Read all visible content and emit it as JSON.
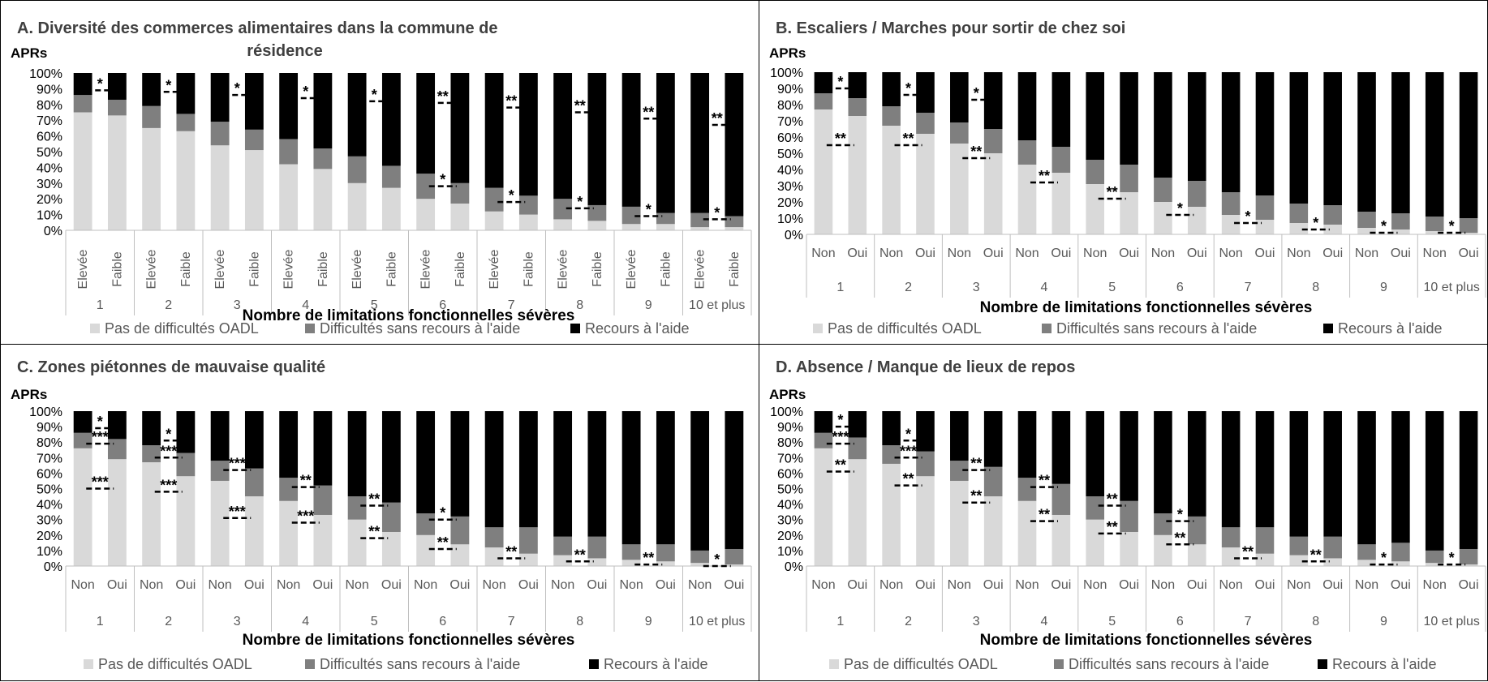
{
  "colors": {
    "pas_de_difficultes": "#d9d9d9",
    "difficultes_sans_aide": "#7f7f7f",
    "recours_aide": "#000000",
    "axis_text": "#595959",
    "grid_line": "#bfbfbf"
  },
  "chart_data": [
    {
      "type": "bar",
      "stacked": true,
      "title_line1": "A. Diversité des commerces alimentaires dans la commune de",
      "title_line2": "résidence",
      "ylabel": "APRs",
      "ylim": [
        0,
        100
      ],
      "yticks": [
        "100%",
        "90%",
        "80%",
        "70%",
        "60%",
        "50%",
        "40%",
        "30%",
        "20%",
        "10%",
        "0%"
      ],
      "xlabel": "Nombre de limitations fonctionnelles sévères",
      "x_category_orientation": "vertical",
      "groups": [
        "1",
        "2",
        "3",
        "4",
        "5",
        "6",
        "7",
        "8",
        "9",
        "10 et plus"
      ],
      "categories": [
        "Elevée",
        "Faible"
      ],
      "legend": [
        "Pas de difficultés OADL",
        "Difficultés sans recours à l'aide",
        "Recours à l'aide"
      ],
      "series": [
        {
          "name": "Pas de difficultés OADL",
          "values": [
            [
              75,
              73
            ],
            [
              65,
              63
            ],
            [
              54,
              51
            ],
            [
              42,
              39
            ],
            [
              30,
              27
            ],
            [
              20,
              17
            ],
            [
              12,
              10
            ],
            [
              7,
              6
            ],
            [
              4,
              4
            ],
            [
              2,
              2
            ]
          ]
        },
        {
          "name": "Difficultés sans recours à l'aide",
          "values": [
            [
              11,
              10
            ],
            [
              14,
              11
            ],
            [
              15,
              13
            ],
            [
              16,
              13
            ],
            [
              17,
              14
            ],
            [
              16,
              13
            ],
            [
              15,
              12
            ],
            [
              13,
              10
            ],
            [
              11,
              7
            ],
            [
              9,
              7
            ]
          ]
        },
        {
          "name": "Recours à l'aide",
          "values": [
            [
              14,
              17
            ],
            [
              21,
              26
            ],
            [
              31,
              36
            ],
            [
              42,
              48
            ],
            [
              53,
              59
            ],
            [
              64,
              70
            ],
            [
              73,
              78
            ],
            [
              80,
              84
            ],
            [
              85,
              89
            ],
            [
              89,
              91
            ]
          ]
        }
      ],
      "annotations": [
        {
          "group": "1",
          "value": 89,
          "text": "*"
        },
        {
          "group": "2",
          "value": 88,
          "text": "*"
        },
        {
          "group": "3",
          "value": 86,
          "text": "*"
        },
        {
          "group": "4",
          "value": 84,
          "text": "*"
        },
        {
          "group": "5",
          "value": 82,
          "text": "*"
        },
        {
          "group": "6",
          "value": 81,
          "text": "**"
        },
        {
          "group": "6",
          "value": 28,
          "text": "*"
        },
        {
          "group": "7",
          "value": 78,
          "text": "**"
        },
        {
          "group": "7",
          "value": 18,
          "text": "*"
        },
        {
          "group": "8",
          "value": 75,
          "text": "**"
        },
        {
          "group": "8",
          "value": 14,
          "text": "*"
        },
        {
          "group": "9",
          "value": 71,
          "text": "**"
        },
        {
          "group": "9",
          "value": 9,
          "text": "*"
        },
        {
          "group": "10 et plus",
          "value": 67,
          "text": "**"
        },
        {
          "group": "10 et plus",
          "value": 7,
          "text": "*"
        }
      ]
    },
    {
      "type": "bar",
      "stacked": true,
      "title_line1": "B. Escaliers / Marches pour sortir de chez soi",
      "title_line2": "",
      "ylabel": "APRs",
      "ylim": [
        0,
        100
      ],
      "yticks": [
        "100%",
        "90%",
        "80%",
        "70%",
        "60%",
        "50%",
        "40%",
        "30%",
        "20%",
        "10%",
        "0%"
      ],
      "xlabel": "Nombre de limitations fonctionnelles sévères",
      "x_category_orientation": "horizontal",
      "groups": [
        "1",
        "2",
        "3",
        "4",
        "5",
        "6",
        "7",
        "8",
        "9",
        "10 et plus"
      ],
      "categories": [
        "Non",
        "Oui"
      ],
      "legend": [
        "Pas de difficultés OADL",
        "Difficultés sans recours à l'aide",
        "Recours à l'aide"
      ],
      "series": [
        {
          "name": "Pas de difficultés OADL",
          "values": [
            [
              77,
              73
            ],
            [
              67,
              62
            ],
            [
              56,
              50
            ],
            [
              43,
              38
            ],
            [
              31,
              26
            ],
            [
              20,
              17
            ],
            [
              12,
              9
            ],
            [
              7,
              6
            ],
            [
              4,
              3
            ],
            [
              2,
              1
            ]
          ]
        },
        {
          "name": "Difficultés sans recours à l'aide",
          "values": [
            [
              10,
              11
            ],
            [
              12,
              13
            ],
            [
              13,
              15
            ],
            [
              15,
              16
            ],
            [
              15,
              17
            ],
            [
              15,
              16
            ],
            [
              14,
              15
            ],
            [
              12,
              12
            ],
            [
              10,
              10
            ],
            [
              9,
              9
            ]
          ]
        },
        {
          "name": "Recours à l'aide",
          "values": [
            [
              13,
              16
            ],
            [
              21,
              25
            ],
            [
              31,
              35
            ],
            [
              42,
              46
            ],
            [
              54,
              57
            ],
            [
              65,
              67
            ],
            [
              74,
              76
            ],
            [
              81,
              82
            ],
            [
              86,
              87
            ],
            [
              89,
              90
            ]
          ]
        }
      ],
      "annotations": [
        {
          "group": "1",
          "value": 90,
          "text": "*"
        },
        {
          "group": "1",
          "value": 55,
          "text": "**"
        },
        {
          "group": "2",
          "value": 86,
          "text": "*"
        },
        {
          "group": "2",
          "value": 55,
          "text": "**"
        },
        {
          "group": "3",
          "value": 83,
          "text": "*"
        },
        {
          "group": "3",
          "value": 47,
          "text": "**"
        },
        {
          "group": "4",
          "value": 32,
          "text": "**"
        },
        {
          "group": "5",
          "value": 22,
          "text": "**"
        },
        {
          "group": "6",
          "value": 12,
          "text": "*"
        },
        {
          "group": "7",
          "value": 7,
          "text": "*"
        },
        {
          "group": "8",
          "value": 3,
          "text": "*"
        },
        {
          "group": "9",
          "value": 1,
          "text": "*"
        },
        {
          "group": "10 et plus",
          "value": 1,
          "text": "*"
        }
      ]
    },
    {
      "type": "bar",
      "stacked": true,
      "title_line1": "C. Zones piétonnes de mauvaise qualité",
      "title_line2": "",
      "ylabel": "APRs",
      "ylim": [
        0,
        100
      ],
      "yticks": [
        "100%",
        "90%",
        "80%",
        "70%",
        "60%",
        "50%",
        "40%",
        "30%",
        "20%",
        "10%",
        "0%"
      ],
      "xlabel": "Nombre de limitations fonctionnelles sévères",
      "x_category_orientation": "horizontal",
      "groups": [
        "1",
        "2",
        "3",
        "4",
        "5",
        "6",
        "7",
        "8",
        "9",
        "10 et plus"
      ],
      "categories": [
        "Non",
        "Oui"
      ],
      "legend": [
        "Pas de difficultés OADL",
        "Difficultés sans recours à l'aide",
        "Recours à l'aide"
      ],
      "series": [
        {
          "name": "Pas de difficultés OADL",
          "values": [
            [
              76,
              69
            ],
            [
              67,
              58
            ],
            [
              55,
              45
            ],
            [
              42,
              33
            ],
            [
              30,
              22
            ],
            [
              20,
              14
            ],
            [
              12,
              8
            ],
            [
              7,
              5
            ],
            [
              4,
              3
            ],
            [
              2,
              1
            ]
          ]
        },
        {
          "name": "Difficultés sans recours à l'aide",
          "values": [
            [
              10,
              13
            ],
            [
              11,
              15
            ],
            [
              13,
              18
            ],
            [
              15,
              19
            ],
            [
              15,
              19
            ],
            [
              14,
              18
            ],
            [
              13,
              17
            ],
            [
              12,
              14
            ],
            [
              10,
              11
            ],
            [
              8,
              10
            ]
          ]
        },
        {
          "name": "Recours à l'aide",
          "values": [
            [
              14,
              18
            ],
            [
              22,
              27
            ],
            [
              32,
              37
            ],
            [
              43,
              48
            ],
            [
              55,
              59
            ],
            [
              66,
              68
            ],
            [
              75,
              75
            ],
            [
              81,
              81
            ],
            [
              86,
              86
            ],
            [
              90,
              89
            ]
          ]
        }
      ],
      "annotations": [
        {
          "group": "1",
          "value": 89,
          "text": "*"
        },
        {
          "group": "1",
          "value": 79,
          "text": "***"
        },
        {
          "group": "1",
          "value": 50,
          "text": "***"
        },
        {
          "group": "2",
          "value": 81,
          "text": "*"
        },
        {
          "group": "2",
          "value": 70,
          "text": "***"
        },
        {
          "group": "2",
          "value": 48,
          "text": "***"
        },
        {
          "group": "3",
          "value": 62,
          "text": "***"
        },
        {
          "group": "3",
          "value": 31,
          "text": "***"
        },
        {
          "group": "4",
          "value": 51,
          "text": "**"
        },
        {
          "group": "4",
          "value": 28,
          "text": "***"
        },
        {
          "group": "5",
          "value": 39,
          "text": "**"
        },
        {
          "group": "5",
          "value": 18,
          "text": "**"
        },
        {
          "group": "6",
          "value": 30,
          "text": "*"
        },
        {
          "group": "6",
          "value": 11,
          "text": "**"
        },
        {
          "group": "7",
          "value": 5,
          "text": "**"
        },
        {
          "group": "8",
          "value": 3,
          "text": "**"
        },
        {
          "group": "9",
          "value": 1,
          "text": "**"
        },
        {
          "group": "10 et plus",
          "value": 0,
          "text": "*"
        }
      ]
    },
    {
      "type": "bar",
      "stacked": true,
      "title_line1": "D. Absence / Manque de lieux de repos",
      "title_line2": "",
      "ylabel": "APRs",
      "ylim": [
        0,
        100
      ],
      "yticks": [
        "100%",
        "90%",
        "80%",
        "70%",
        "60%",
        "50%",
        "40%",
        "30%",
        "20%",
        "10%",
        "0%"
      ],
      "xlabel": "Nombre de limitations fonctionnelles sévères",
      "x_category_orientation": "horizontal",
      "groups": [
        "1",
        "2",
        "3",
        "4",
        "5",
        "6",
        "7",
        "8",
        "9",
        "10 et plus"
      ],
      "categories": [
        "Non",
        "Oui"
      ],
      "legend": [
        "Pas de difficultés OADL",
        "Difficultés sans recours à l'aide",
        "Recours à l'aide"
      ],
      "series": [
        {
          "name": "Pas de difficultés OADL",
          "values": [
            [
              76,
              69
            ],
            [
              66,
              58
            ],
            [
              55,
              45
            ],
            [
              42,
              33
            ],
            [
              30,
              22
            ],
            [
              20,
              14
            ],
            [
              12,
              8
            ],
            [
              7,
              5
            ],
            [
              4,
              3
            ],
            [
              2,
              1
            ]
          ]
        },
        {
          "name": "Difficultés sans recours à l'aide",
          "values": [
            [
              10,
              14
            ],
            [
              12,
              16
            ],
            [
              13,
              19
            ],
            [
              15,
              20
            ],
            [
              15,
              20
            ],
            [
              14,
              18
            ],
            [
              13,
              17
            ],
            [
              12,
              14
            ],
            [
              10,
              12
            ],
            [
              8,
              10
            ]
          ]
        },
        {
          "name": "Recours à l'aide",
          "values": [
            [
              14,
              17
            ],
            [
              22,
              26
            ],
            [
              32,
              36
            ],
            [
              43,
              47
            ],
            [
              55,
              58
            ],
            [
              66,
              68
            ],
            [
              75,
              75
            ],
            [
              81,
              81
            ],
            [
              86,
              85
            ],
            [
              90,
              89
            ]
          ]
        }
      ],
      "annotations": [
        {
          "group": "1",
          "value": 90,
          "text": "*"
        },
        {
          "group": "1",
          "value": 79,
          "text": "***"
        },
        {
          "group": "1",
          "value": 61,
          "text": "**"
        },
        {
          "group": "2",
          "value": 81,
          "text": "*"
        },
        {
          "group": "2",
          "value": 70,
          "text": "***"
        },
        {
          "group": "2",
          "value": 52,
          "text": "**"
        },
        {
          "group": "3",
          "value": 62,
          "text": "**"
        },
        {
          "group": "3",
          "value": 41,
          "text": "**"
        },
        {
          "group": "4",
          "value": 51,
          "text": "**"
        },
        {
          "group": "4",
          "value": 29,
          "text": "**"
        },
        {
          "group": "5",
          "value": 39,
          "text": "**"
        },
        {
          "group": "5",
          "value": 21,
          "text": "**"
        },
        {
          "group": "6",
          "value": 29,
          "text": "*"
        },
        {
          "group": "6",
          "value": 14,
          "text": "**"
        },
        {
          "group": "7",
          "value": 5,
          "text": "**"
        },
        {
          "group": "8",
          "value": 3,
          "text": "**"
        },
        {
          "group": "9",
          "value": 1,
          "text": "*"
        },
        {
          "group": "10 et plus",
          "value": 1,
          "text": "*"
        }
      ]
    }
  ]
}
